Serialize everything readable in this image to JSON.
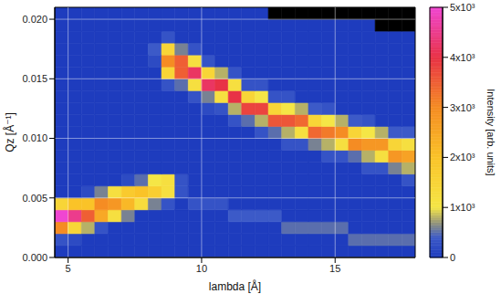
{
  "chart_data": {
    "type": "heatmap",
    "xlabel": "lambda [Å]",
    "ylabel": "Qz [Å⁻¹]",
    "xlim": [
      4.5,
      18
    ],
    "ylim": [
      0,
      0.021
    ],
    "xticks": [
      5,
      10,
      15
    ],
    "yticks": [
      {
        "value": 0,
        "label": "0.000"
      },
      {
        "value": 0.005,
        "label": "0.005"
      },
      {
        "value": 0.01,
        "label": "0.010"
      },
      {
        "value": 0.015,
        "label": "0.015"
      },
      {
        "value": 0.02,
        "label": "0.020"
      }
    ],
    "grid": true,
    "x_bins": [
      4.5,
      5,
      5.5,
      6,
      6.5,
      7,
      7.5,
      8,
      8.5,
      9,
      9.5,
      10,
      10.5,
      11,
      11.5,
      12,
      12.5,
      13,
      13.5,
      14,
      14.5,
      15,
      15.5,
      16,
      16.5,
      17,
      17.5,
      18
    ],
    "y_bins": [
      0,
      0.001,
      0.002,
      0.003,
      0.004,
      0.005,
      0.006,
      0.007,
      0.008,
      0.009,
      0.01,
      0.011,
      0.012,
      0.013,
      0.014,
      0.015,
      0.016,
      0.017,
      0.018,
      0.019,
      0.02,
      0.021
    ],
    "z": [
      [
        0,
        0,
        0,
        0,
        0,
        0,
        0,
        0,
        0,
        0,
        0,
        0,
        0,
        0,
        0,
        0,
        0,
        0,
        0,
        0,
        0,
        0,
        0,
        0,
        0,
        0,
        0
      ],
      [
        300,
        200,
        0,
        0,
        0,
        0,
        0,
        0,
        0,
        0,
        0,
        0,
        0,
        0,
        0,
        0,
        0,
        0,
        0,
        0,
        0,
        0,
        500,
        500,
        500,
        500,
        500
      ],
      [
        3000,
        1500,
        800,
        300,
        0,
        0,
        0,
        0,
        0,
        0,
        0,
        0,
        0,
        0,
        0,
        0,
        0,
        500,
        500,
        500,
        500,
        500,
        0,
        0,
        0,
        0,
        0
      ],
      [
        5000,
        4500,
        3500,
        2500,
        1200,
        600,
        0,
        0,
        0,
        0,
        0,
        0,
        0,
        400,
        400,
        400,
        400,
        0,
        0,
        0,
        0,
        0,
        0,
        0,
        0,
        0,
        0
      ],
      [
        1500,
        2000,
        2000,
        3000,
        2800,
        2200,
        1300,
        600,
        300,
        0,
        300,
        300,
        300,
        0,
        0,
        0,
        0,
        0,
        0,
        0,
        0,
        0,
        0,
        0,
        0,
        0,
        0
      ],
      [
        0,
        0,
        200,
        600,
        1200,
        1800,
        2000,
        1700,
        1200,
        300,
        0,
        0,
        0,
        0,
        0,
        0,
        0,
        0,
        0,
        0,
        0,
        0,
        0,
        0,
        0,
        0,
        0
      ],
      [
        0,
        0,
        0,
        0,
        0,
        200,
        500,
        1000,
        1200,
        300,
        0,
        0,
        0,
        0,
        0,
        0,
        0,
        0,
        0,
        0,
        0,
        0,
        0,
        0,
        0,
        0,
        300
      ],
      [
        0,
        0,
        0,
        0,
        0,
        0,
        0,
        0,
        0,
        0,
        0,
        0,
        0,
        0,
        0,
        0,
        0,
        0,
        0,
        0,
        0,
        0,
        0,
        300,
        300,
        600,
        800
      ],
      [
        0,
        0,
        0,
        0,
        0,
        0,
        0,
        0,
        0,
        0,
        0,
        0,
        0,
        0,
        0,
        0,
        0,
        0,
        0,
        0,
        300,
        300,
        500,
        800,
        1200,
        2800,
        2600
      ],
      [
        0,
        0,
        0,
        0,
        0,
        0,
        0,
        0,
        0,
        0,
        0,
        0,
        0,
        0,
        0,
        0,
        0,
        300,
        300,
        600,
        800,
        1200,
        3000,
        2800,
        2800,
        1500,
        1200
      ],
      [
        0,
        0,
        0,
        0,
        0,
        0,
        0,
        0,
        0,
        0,
        0,
        0,
        0,
        0,
        0,
        300,
        500,
        800,
        1200,
        3400,
        3200,
        3000,
        1500,
        1000,
        800,
        400,
        400
      ],
      [
        0,
        0,
        0,
        0,
        0,
        0,
        0,
        0,
        0,
        0,
        0,
        0,
        0,
        300,
        500,
        800,
        3600,
        3600,
        3400,
        1500,
        1000,
        800,
        400,
        300,
        0,
        0,
        0
      ],
      [
        0,
        0,
        0,
        0,
        0,
        0,
        0,
        0,
        0,
        0,
        0,
        200,
        300,
        800,
        3800,
        3800,
        1500,
        1000,
        800,
        400,
        300,
        0,
        0,
        0,
        0,
        0,
        0
      ],
      [
        0,
        0,
        0,
        0,
        0,
        0,
        0,
        0,
        0,
        0,
        300,
        600,
        1200,
        4000,
        1500,
        1000,
        300,
        300,
        0,
        0,
        0,
        0,
        0,
        0,
        0,
        0,
        0
      ],
      [
        0,
        0,
        0,
        0,
        0,
        0,
        0,
        0,
        300,
        500,
        1200,
        4200,
        4000,
        1200,
        300,
        300,
        0,
        0,
        0,
        0,
        0,
        0,
        0,
        0,
        0,
        0,
        0
      ],
      [
        0,
        0,
        0,
        0,
        0,
        0,
        0,
        0,
        1500,
        3500,
        4200,
        1500,
        800,
        300,
        0,
        0,
        0,
        0,
        0,
        0,
        0,
        0,
        0,
        0,
        0,
        0,
        0
      ],
      [
        0,
        0,
        0,
        0,
        0,
        0,
        0,
        200,
        3000,
        3500,
        1200,
        300,
        0,
        0,
        0,
        0,
        0,
        0,
        0,
        0,
        0,
        0,
        0,
        0,
        0,
        0,
        0
      ],
      [
        0,
        0,
        0,
        0,
        0,
        0,
        0,
        400,
        1500,
        600,
        300,
        0,
        0,
        0,
        0,
        0,
        0,
        0,
        0,
        0,
        0,
        0,
        0,
        0,
        0,
        0,
        0
      ],
      [
        0,
        0,
        0,
        0,
        0,
        0,
        0,
        0,
        300,
        0,
        0,
        0,
        0,
        0,
        0,
        0,
        0,
        0,
        0,
        0,
        0,
        0,
        0,
        0,
        0,
        0,
        0
      ],
      [
        0,
        0,
        0,
        0,
        0,
        0,
        0,
        0,
        0,
        0,
        0,
        0,
        0,
        0,
        0,
        0,
        0,
        0,
        0,
        0,
        0,
        0,
        0,
        0,
        null,
        null,
        null
      ],
      [
        0,
        0,
        0,
        0,
        0,
        0,
        0,
        0,
        0,
        0,
        0,
        0,
        0,
        0,
        0,
        0,
        null,
        null,
        null,
        null,
        null,
        null,
        null,
        null,
        null,
        null,
        null
      ]
    ],
    "colorbar": {
      "label": "Intensity [arb. units]",
      "lim": [
        0,
        5000
      ],
      "ticks": [
        0,
        {
          "value": 1000,
          "label": "1x10³"
        },
        {
          "value": 2000,
          "label": "2x10³"
        },
        {
          "value": 3000,
          "label": "3x10³"
        },
        {
          "value": 4000,
          "label": "4x10³"
        },
        {
          "value": 5000,
          "label": "5x10³"
        }
      ]
    }
  }
}
